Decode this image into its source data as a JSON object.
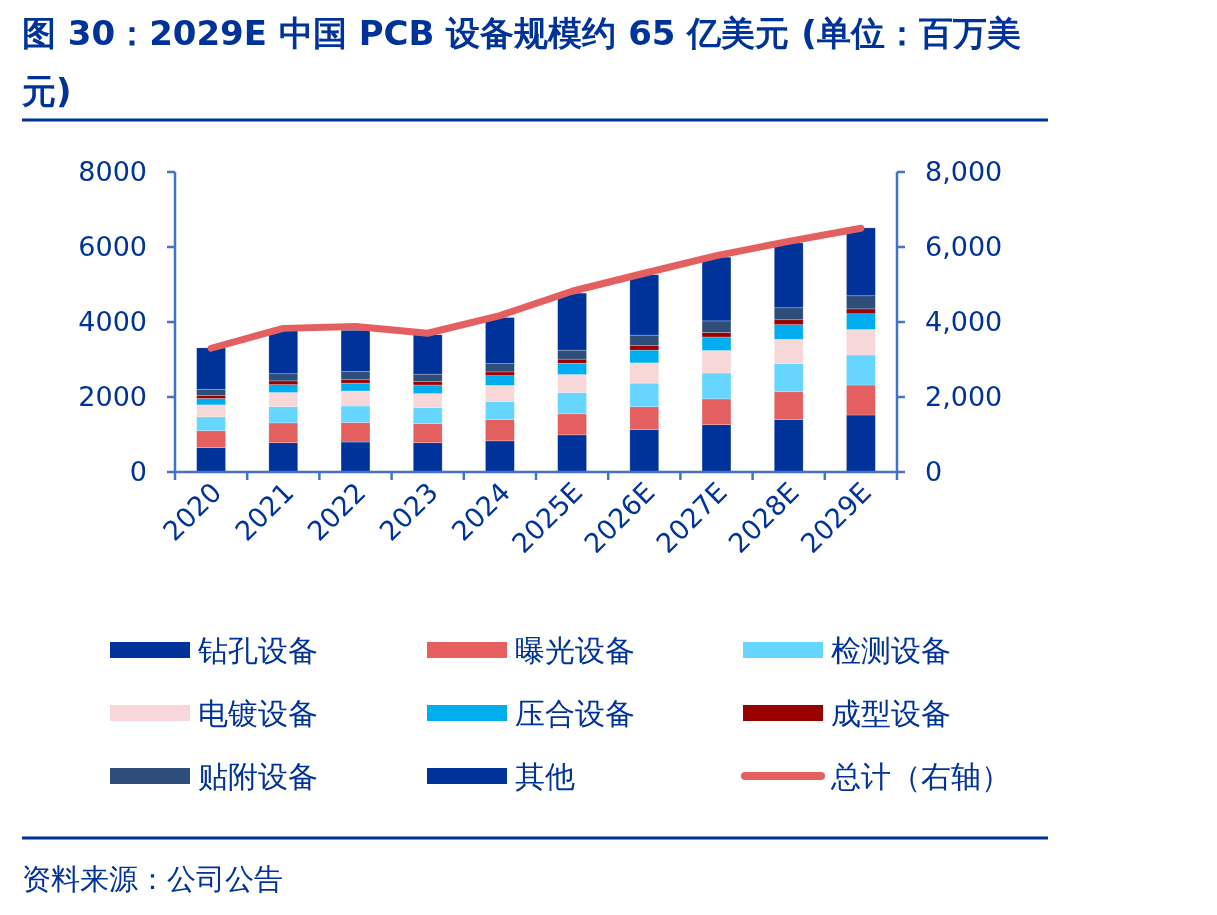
{
  "chart_data": {
    "type": "bar",
    "stacked": true,
    "title": "图 30：2029E 中国 PCB 设备规模约 65 亿美元 (单位：百万美元)",
    "categories": [
      "2020",
      "2021",
      "2022",
      "2023",
      "2024",
      "2025E",
      "2026E",
      "2027E",
      "2028E",
      "2029E"
    ],
    "series": [
      {
        "name": "钻孔设备",
        "color": "#003399",
        "values": [
          650,
          780,
          800,
          780,
          830,
          990,
          1130,
          1260,
          1400,
          1520
        ]
      },
      {
        "name": "曝光设备",
        "color": "#E46060",
        "values": [
          450,
          530,
          520,
          510,
          570,
          560,
          610,
          690,
          740,
          800
        ]
      },
      {
        "name": "检测设备",
        "color": "#66D5FF",
        "values": [
          370,
          430,
          440,
          430,
          480,
          570,
          630,
          690,
          750,
          800
        ]
      },
      {
        "name": "电镀设备",
        "color": "#F8D7D9",
        "values": [
          320,
          380,
          400,
          370,
          430,
          480,
          540,
          600,
          650,
          680
        ]
      },
      {
        "name": "压合设备",
        "color": "#00AEEF",
        "values": [
          170,
          210,
          210,
          230,
          260,
          300,
          340,
          360,
          390,
          420
        ]
      },
      {
        "name": "成型设备",
        "color": "#990000",
        "values": [
          80,
          100,
          90,
          90,
          100,
          110,
          120,
          120,
          130,
          130
        ]
      },
      {
        "name": "贴附设备",
        "color": "#2E4E7A",
        "values": [
          160,
          190,
          220,
          200,
          220,
          240,
          280,
          310,
          320,
          350
        ]
      },
      {
        "name": "其他",
        "color": "#003399",
        "values": [
          1110,
          1150,
          1100,
          1050,
          1230,
          1520,
          1610,
          1700,
          1730,
          1810
        ]
      },
      {
        "name": "总计（右轴）",
        "color": "#E46060",
        "type": "line",
        "axis": "y2",
        "values": [
          3300,
          3830,
          3880,
          3700,
          4170,
          4820,
          5300,
          5770,
          6150,
          6500
        ]
      }
    ],
    "ylim": [
      0,
      8000
    ],
    "yticks": [
      0,
      2000,
      4000,
      6000,
      8000
    ],
    "y2lim": [
      0,
      8000
    ],
    "y2ticks": [
      0,
      {
        "value": 2000,
        "label": "2,000"
      },
      {
        "value": 4000,
        "label": "4,000"
      },
      {
        "value": 6000,
        "label": "6,000"
      },
      {
        "value": 8000,
        "label": "8,000"
      }
    ],
    "legend": "bottom",
    "annotations": [
      "资料来源：公司公告"
    ]
  }
}
